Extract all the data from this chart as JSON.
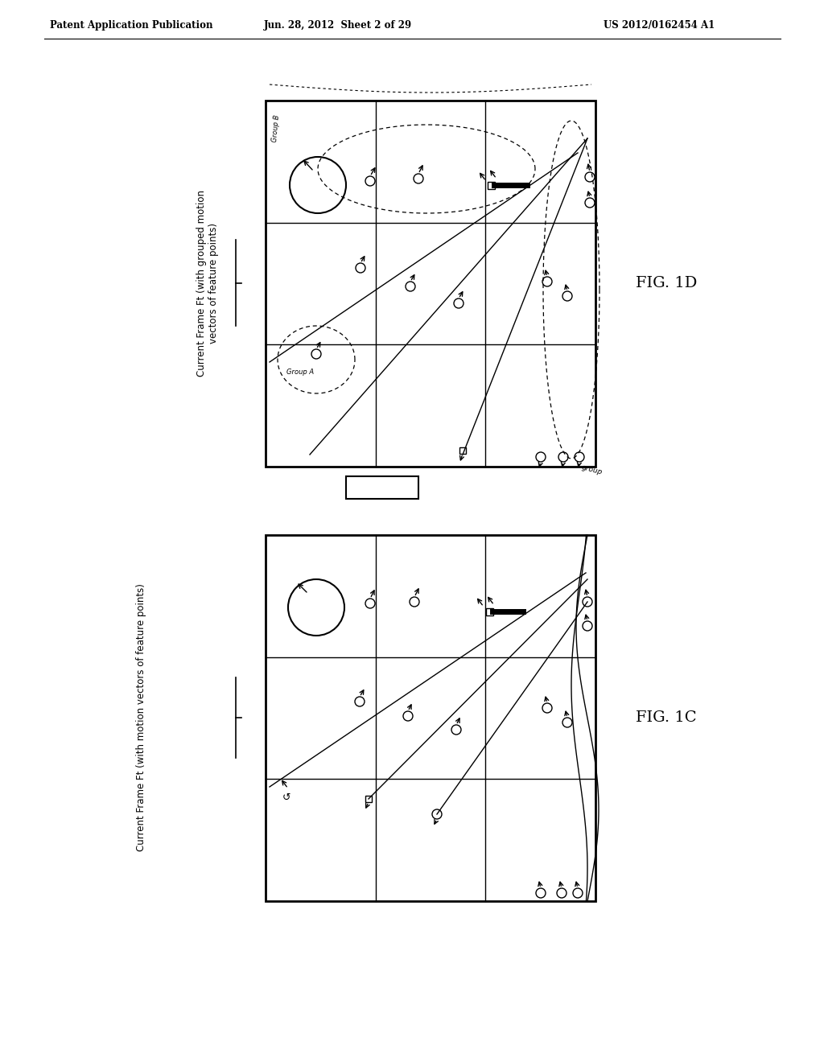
{
  "bg_color": "#ffffff",
  "header_left": "Patent Application Publication",
  "header_center": "Jun. 28, 2012  Sheet 2 of 29",
  "header_right": "US 2012/0162454 A1",
  "fig1c_label": "FIG. 1C",
  "fig1d_label": "FIG. 1D",
  "rotated_label_1c": "Current Frame Ft (with motion vectors of feature points)",
  "rotated_label_1d": "Current Frame Ft (with grouped motion\nvectors of feature points)"
}
